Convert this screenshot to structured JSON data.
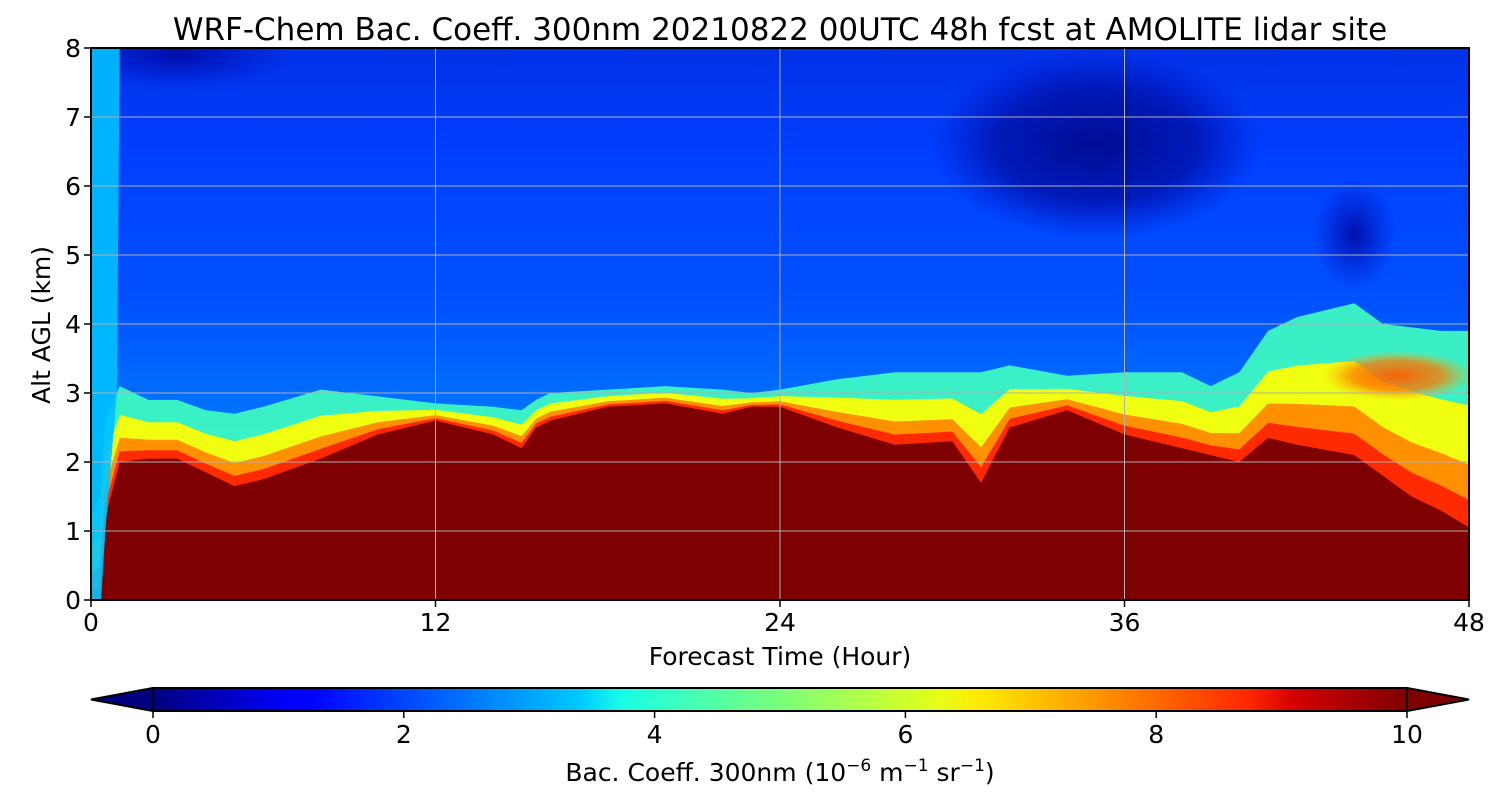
{
  "chart_data": {
    "type": "heatmap",
    "title": "WRF-Chem Bac. Coeff. 300nm  20210822 00UTC 48h fcst at AMOLITE lidar site",
    "xlabel": "Forecast Time (Hour)",
    "ylabel": "Alt AGL (km)",
    "xlim": [
      0,
      48
    ],
    "ylim": [
      0,
      8
    ],
    "x_ticks": [
      "0",
      "12",
      "24",
      "36",
      "48"
    ],
    "y_ticks": [
      "0",
      "1",
      "2",
      "3",
      "4",
      "5",
      "6",
      "7",
      "8"
    ],
    "grid": true,
    "colorbar": {
      "label_main": "Bac. Coeff. 300nm  (10",
      "label_exp1": "−6",
      "label_mid": " m",
      "label_exp2": "−1",
      "label_mid2": " sr",
      "label_exp3": "−1",
      "label_end": ")",
      "range": [
        0,
        10
      ],
      "ticks": [
        "0",
        "2",
        "4",
        "6",
        "8",
        "10"
      ],
      "colormap": "jet",
      "extend": "both",
      "placement": "bottom"
    },
    "layer_structure": {
      "time_hours": [
        0,
        0.3,
        0.5,
        1,
        2,
        3,
        4,
        5,
        6,
        8,
        10,
        12,
        14,
        15,
        15.5,
        16,
        18,
        20,
        22,
        23,
        24,
        26,
        28,
        30,
        31,
        32,
        34,
        36,
        38,
        39,
        40,
        41,
        42,
        44,
        45,
        46,
        47,
        48
      ],
      "saturated_top_km": [
        0,
        0,
        1.2,
        2.0,
        2.05,
        2.05,
        1.85,
        1.65,
        1.75,
        2.05,
        2.4,
        2.6,
        2.4,
        2.2,
        2.5,
        2.6,
        2.8,
        2.85,
        2.7,
        2.8,
        2.8,
        2.5,
        2.25,
        2.3,
        1.7,
        2.5,
        2.75,
        2.4,
        2.2,
        2.1,
        2.0,
        2.35,
        2.25,
        2.1,
        1.8,
        1.5,
        1.3,
        1.05
      ],
      "transition_top_km": [
        1.2,
        1.5,
        2.6,
        3.1,
        2.9,
        2.9,
        2.75,
        2.7,
        2.8,
        3.05,
        2.95,
        2.85,
        2.8,
        2.75,
        2.9,
        3.0,
        3.05,
        3.1,
        3.05,
        3.0,
        3.05,
        3.2,
        3.3,
        3.3,
        3.3,
        3.4,
        3.25,
        3.3,
        3.3,
        3.1,
        3.3,
        3.9,
        4.1,
        4.3,
        4.0,
        3.95,
        3.9,
        3.9
      ]
    }
  }
}
